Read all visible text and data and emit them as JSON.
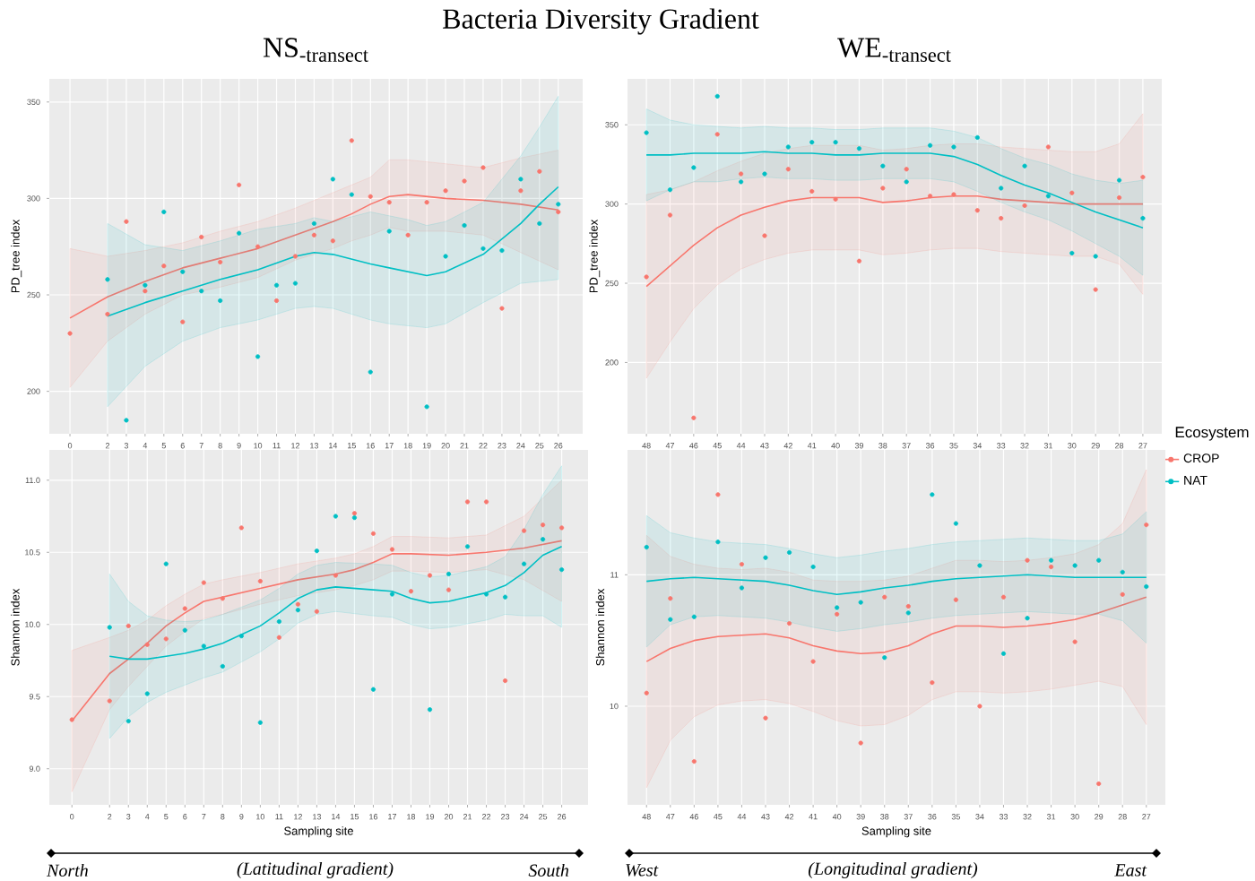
{
  "chart_data": [
    {
      "type": "scatter",
      "title": "NS$_{-transect}$",
      "ylabel": "PD_tree index",
      "marker": "circle",
      "grid": true,
      "annotations": [
        "Bacteria Diversity Gradient"
      ],
      "xlim": [
        -1.1,
        27.3
      ],
      "xticks": [
        0,
        2,
        3,
        4,
        5,
        6,
        7,
        8,
        9,
        10,
        11,
        12,
        13,
        14,
        15,
        16,
        17,
        18,
        19,
        20,
        21,
        22,
        23,
        24,
        25,
        26
      ],
      "ylim": [
        178,
        362
      ],
      "yticks": [
        200,
        250,
        300,
        350
      ],
      "series": [
        {
          "color": "#f8766d",
          "x": [
            0,
            2,
            3,
            4,
            5,
            6,
            7,
            8,
            9,
            10,
            11,
            12,
            13,
            14,
            15,
            16,
            17,
            18,
            19,
            20,
            21,
            22,
            23,
            24,
            25,
            26
          ],
          "values": [
            230,
            240,
            288,
            252,
            265,
            236,
            280,
            267,
            307,
            275,
            247,
            270,
            281,
            278,
            330,
            301,
            298,
            281,
            298,
            304,
            309,
            316,
            243,
            304,
            314,
            293
          ]
        },
        {
          "color": "#00bfc4",
          "x": [
            2,
            3,
            4,
            5,
            6,
            7,
            8,
            9,
            10,
            11,
            12,
            13,
            14,
            15,
            16,
            17,
            19,
            20,
            21,
            22,
            23,
            24,
            25,
            26
          ],
          "values": [
            258,
            185,
            255,
            293,
            262,
            252,
            247,
            282,
            218,
            255,
            256,
            287,
            310,
            302,
            210,
            283,
            192,
            270,
            286,
            274,
            273,
            310,
            287,
            297
          ]
        },
        {
          "type": "line",
          "marker": "none",
          "color": "#f8766d",
          "x": [
            0,
            2,
            4,
            6,
            8,
            10,
            12,
            14,
            15,
            16,
            17,
            18,
            20,
            22,
            24,
            26
          ],
          "values": [
            238,
            249,
            257,
            264,
            269,
            274,
            281,
            288,
            292,
            297,
            301,
            302,
            300,
            299,
            297,
            294
          ],
          "lower": [
            202,
            226,
            240,
            250,
            254,
            259,
            268,
            274,
            278,
            281,
            285,
            283,
            283,
            281,
            272,
            263
          ],
          "upper": [
            274,
            270,
            273,
            277,
            283,
            288,
            295,
            303,
            307,
            311,
            320,
            320,
            318,
            316,
            321,
            325
          ]
        },
        {
          "type": "line",
          "marker": "none",
          "color": "#00bfc4",
          "x": [
            2,
            4,
            6,
            8,
            10,
            12,
            13,
            14,
            16,
            17,
            18,
            19,
            20,
            22,
            24,
            25,
            26
          ],
          "values": [
            239,
            246,
            252,
            258,
            263,
            270,
            272,
            271,
            266,
            264,
            262,
            260,
            262,
            271,
            287,
            297,
            306
          ],
          "lower": [
            192,
            213,
            226,
            233,
            237,
            243,
            244,
            243,
            237,
            235,
            234,
            233,
            235,
            246,
            256,
            257,
            258
          ],
          "upper": [
            287,
            276,
            273,
            278,
            284,
            287,
            290,
            288,
            293,
            291,
            289,
            286,
            288,
            298,
            322,
            337,
            353
          ]
        }
      ]
    },
    {
      "type": "scatter",
      "title": "WE$_{-transect}$",
      "ylabel": "PD_tree index",
      "marker": "circle",
      "grid": true,
      "legend": "right",
      "legend_title": "Ecosystem",
      "categories": [
        "48",
        "47",
        "46",
        "45",
        "44",
        "43",
        "42",
        "41",
        "40",
        "39",
        "38",
        "37",
        "36",
        "35",
        "34",
        "33",
        "32",
        "31",
        "30",
        "29",
        "28",
        "27"
      ],
      "ylim": [
        155,
        379
      ],
      "yticks": [
        200,
        250,
        300,
        350
      ],
      "series": [
        {
          "color": "#f8766d",
          "values": [
            254,
            293,
            165,
            344,
            319,
            280,
            322,
            308,
            303,
            264,
            310,
            322,
            305,
            306,
            296,
            291,
            299,
            336,
            307,
            246,
            304,
            317
          ]
        },
        {
          "color": "#00bfc4",
          "values": [
            345,
            309,
            323,
            368,
            314,
            319,
            336,
            339,
            339,
            335,
            324,
            314,
            337,
            336,
            342,
            310,
            324,
            305,
            269,
            267,
            315,
            291
          ]
        },
        {
          "type": "line",
          "marker": "none",
          "name": "CROP",
          "color": "#f8766d",
          "values": [
            248,
            261,
            274,
            285,
            293,
            298,
            302,
            304,
            304,
            304,
            301,
            302,
            304,
            305,
            305,
            303,
            302,
            301,
            300,
            300,
            300,
            300
          ],
          "lower": [
            190,
            213,
            234,
            249,
            259,
            265,
            269,
            271,
            271,
            271,
            268,
            269,
            271,
            272,
            272,
            270,
            269,
            268,
            267,
            267,
            262,
            243
          ],
          "upper": [
            306,
            309,
            314,
            321,
            327,
            332,
            335,
            337,
            337,
            337,
            334,
            335,
            337,
            338,
            338,
            336,
            335,
            334,
            333,
            333,
            338,
            357
          ]
        },
        {
          "type": "line",
          "marker": "none",
          "name": "NAT",
          "color": "#00bfc4",
          "values": [
            331,
            331,
            332,
            332,
            332,
            333,
            332,
            332,
            331,
            331,
            332,
            332,
            332,
            330,
            325,
            318,
            312,
            307,
            301,
            295,
            290,
            285
          ],
          "lower": [
            302,
            309,
            314,
            314,
            316,
            317,
            316,
            316,
            315,
            315,
            316,
            316,
            316,
            314,
            308,
            301,
            295,
            290,
            283,
            275,
            267,
            255
          ],
          "upper": [
            360,
            353,
            350,
            349,
            348,
            349,
            348,
            348,
            347,
            347,
            348,
            348,
            348,
            346,
            342,
            335,
            329,
            325,
            319,
            315,
            313,
            315
          ]
        }
      ]
    },
    {
      "type": "scatter",
      "xlabel": "Sampling site",
      "ylabel": "Shannon index",
      "marker": "circle",
      "grid": true,
      "annotations": [
        "North",
        "(Latitudinal gradient)",
        "South"
      ],
      "xlim": [
        -1.2,
        27.4
      ],
      "xticks": [
        0,
        2,
        3,
        4,
        5,
        6,
        7,
        8,
        9,
        10,
        11,
        12,
        13,
        14,
        15,
        16,
        17,
        18,
        19,
        20,
        21,
        22,
        23,
        24,
        25,
        26
      ],
      "ylim": [
        8.75,
        11.21
      ],
      "yticks": [
        {
          "value": 9,
          "label": "9.0"
        },
        9.5,
        {
          "value": 10,
          "label": "10.0"
        },
        10.5,
        {
          "value": 11,
          "label": "11.0"
        }
      ],
      "series": [
        {
          "color": "#f8766d",
          "x": [
            0,
            2,
            3,
            4,
            5,
            6,
            7,
            8,
            9,
            10,
            11,
            12,
            13,
            14,
            15,
            16,
            17,
            18,
            19,
            20,
            21,
            22,
            23,
            24,
            25,
            26
          ],
          "values": [
            9.34,
            9.47,
            9.99,
            9.86,
            9.9,
            10.11,
            10.29,
            10.18,
            10.67,
            10.3,
            9.91,
            10.14,
            10.09,
            10.34,
            10.77,
            10.63,
            10.52,
            10.23,
            10.34,
            10.24,
            10.85,
            10.85,
            9.61,
            10.65,
            10.69,
            10.67
          ]
        },
        {
          "color": "#00bfc4",
          "x": [
            2,
            3,
            4,
            5,
            6,
            7,
            8,
            9,
            10,
            11,
            12,
            13,
            14,
            15,
            16,
            17,
            19,
            20,
            21,
            22,
            23,
            24,
            25,
            26
          ],
          "values": [
            9.98,
            9.33,
            9.52,
            10.42,
            9.96,
            9.85,
            9.71,
            9.92,
            9.32,
            10.02,
            10.1,
            10.51,
            10.75,
            10.74,
            9.55,
            10.21,
            9.41,
            10.35,
            10.54,
            10.21,
            10.19,
            10.42,
            10.59,
            10.38
          ]
        },
        {
          "type": "line",
          "marker": "none",
          "color": "#f8766d",
          "x": [
            0,
            2,
            3,
            4,
            5,
            6,
            7,
            8,
            10,
            12,
            14,
            15,
            16,
            17,
            18,
            20,
            22,
            24,
            26
          ],
          "values": [
            9.33,
            9.66,
            9.76,
            9.87,
            9.99,
            10.08,
            10.16,
            10.19,
            10.25,
            10.31,
            10.35,
            10.38,
            10.43,
            10.49,
            10.49,
            10.48,
            10.5,
            10.53,
            10.58
          ],
          "lower": [
            8.84,
            9.41,
            9.57,
            9.71,
            9.85,
            9.95,
            10.04,
            10.07,
            10.14,
            10.2,
            10.24,
            10.27,
            10.31,
            10.37,
            10.37,
            10.36,
            10.38,
            10.31,
            10.16
          ],
          "upper": [
            9.82,
            9.91,
            9.96,
            10.03,
            10.13,
            10.21,
            10.28,
            10.31,
            10.36,
            10.42,
            10.46,
            10.49,
            10.54,
            10.61,
            10.61,
            10.6,
            10.62,
            10.75,
            11.0
          ]
        },
        {
          "type": "line",
          "marker": "none",
          "color": "#00bfc4",
          "x": [
            2,
            3,
            4,
            5,
            6,
            7,
            8,
            9,
            10,
            11,
            12,
            13,
            14,
            16,
            17,
            18,
            19,
            20,
            22,
            23,
            24,
            25,
            26
          ],
          "values": [
            9.78,
            9.76,
            9.76,
            9.78,
            9.8,
            9.83,
            9.87,
            9.93,
            9.99,
            10.08,
            10.18,
            10.24,
            10.26,
            10.24,
            10.23,
            10.18,
            10.15,
            10.16,
            10.22,
            10.27,
            10.36,
            10.48,
            10.54
          ],
          "lower": [
            9.21,
            9.36,
            9.46,
            9.53,
            9.58,
            9.63,
            9.67,
            9.74,
            9.81,
            9.9,
            10.01,
            10.07,
            10.09,
            10.06,
            10.05,
            10.0,
            9.97,
            9.98,
            10.03,
            10.07,
            10.06,
            10.06,
            9.98
          ],
          "upper": [
            10.35,
            10.16,
            10.06,
            10.03,
            10.02,
            10.03,
            10.07,
            10.12,
            10.17,
            10.25,
            10.35,
            10.41,
            10.43,
            10.42,
            10.41,
            10.36,
            10.33,
            10.34,
            10.4,
            10.47,
            10.66,
            10.9,
            11.1
          ]
        }
      ]
    },
    {
      "type": "scatter",
      "xlabel": "Sampling site",
      "ylabel": "Shannon index",
      "marker": "circle",
      "grid": true,
      "annotations": [
        "West",
        "(Longitudinal gradient)",
        "East"
      ],
      "categories": [
        "48",
        "47",
        "46",
        "45",
        "44",
        "43",
        "42",
        "41",
        "40",
        "39",
        "38",
        "37",
        "36",
        "35",
        "34",
        "33",
        "32",
        "31",
        "30",
        "29",
        "28",
        "27"
      ],
      "ylim": [
        9.25,
        11.95
      ],
      "yticks": [
        10,
        11
      ],
      "series": [
        {
          "color": "#f8766d",
          "values": [
            10.1,
            10.82,
            9.58,
            11.61,
            11.08,
            9.91,
            10.63,
            10.34,
            10.7,
            9.72,
            10.83,
            10.76,
            10.18,
            10.81,
            10.0,
            10.83,
            11.11,
            11.06,
            10.49,
            9.41,
            10.85,
            11.38
          ]
        },
        {
          "color": "#00bfc4",
          "values": [
            11.21,
            10.66,
            10.68,
            11.25,
            10.9,
            11.13,
            11.17,
            11.06,
            10.75,
            10.79,
            10.37,
            10.71,
            11.61,
            11.39,
            11.07,
            10.4,
            10.67,
            11.11,
            11.07,
            11.11,
            11.02,
            10.91
          ]
        },
        {
          "type": "line",
          "marker": "none",
          "color": "#f8766d",
          "values": [
            10.34,
            10.44,
            10.5,
            10.53,
            10.54,
            10.55,
            10.52,
            10.46,
            10.42,
            10.4,
            10.41,
            10.46,
            10.55,
            10.61,
            10.61,
            10.6,
            10.61,
            10.63,
            10.66,
            10.71,
            10.77,
            10.83
          ],
          "lower": [
            9.38,
            9.74,
            9.92,
            10.01,
            10.04,
            10.05,
            10.02,
            9.96,
            9.89,
            9.85,
            9.86,
            9.93,
            10.05,
            10.11,
            10.11,
            10.1,
            10.11,
            10.13,
            10.16,
            10.19,
            10.15,
            9.86
          ],
          "upper": [
            11.3,
            11.14,
            11.08,
            11.05,
            11.04,
            11.05,
            11.02,
            10.96,
            10.95,
            10.95,
            10.96,
            10.99,
            11.05,
            11.11,
            11.11,
            11.1,
            11.11,
            11.13,
            11.16,
            11.23,
            11.39,
            11.8
          ]
        },
        {
          "type": "line",
          "marker": "none",
          "color": "#00bfc4",
          "values": [
            10.95,
            10.97,
            10.98,
            10.97,
            10.96,
            10.95,
            10.92,
            10.88,
            10.85,
            10.87,
            10.9,
            10.92,
            10.95,
            10.97,
            10.98,
            10.99,
            11.0,
            10.99,
            10.98,
            10.98,
            10.98,
            10.98
          ],
          "lower": [
            10.45,
            10.62,
            10.68,
            10.69,
            10.68,
            10.67,
            10.64,
            10.6,
            10.57,
            10.59,
            10.62,
            10.64,
            10.67,
            10.69,
            10.7,
            10.71,
            10.72,
            10.71,
            10.7,
            10.7,
            10.65,
            10.48
          ],
          "upper": [
            11.45,
            11.32,
            11.28,
            11.25,
            11.24,
            11.23,
            11.2,
            11.16,
            11.13,
            11.15,
            11.18,
            11.2,
            11.23,
            11.25,
            11.26,
            11.27,
            11.28,
            11.27,
            11.26,
            11.26,
            11.31,
            11.48
          ]
        }
      ]
    }
  ]
}
